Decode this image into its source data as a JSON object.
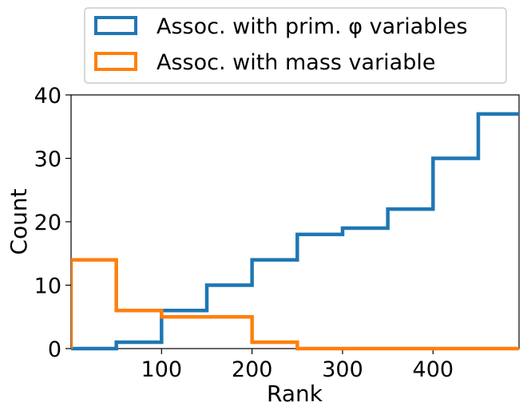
{
  "chart_data": {
    "type": "step-histogram",
    "xlabel": "Rank",
    "ylabel": "Count",
    "xlim": [
      0,
      495
    ],
    "ylim": [
      0,
      40
    ],
    "xticks": [
      100,
      200,
      300,
      400
    ],
    "yticks": [
      0,
      10,
      20,
      30,
      40
    ],
    "bin_edges": [
      0,
      50,
      100,
      150,
      200,
      250,
      300,
      350,
      400,
      450,
      500
    ],
    "legend_position": "top, above plot",
    "series": [
      {
        "name": "Assoc. with prim. φ variables",
        "color": "#1f77b4",
        "values": [
          0,
          1,
          6,
          10,
          14,
          18,
          19,
          22,
          30,
          37
        ]
      },
      {
        "name": "Assoc. with mass variable",
        "color": "#ff7f0e",
        "values": [
          14,
          6,
          5,
          5,
          1,
          0,
          0,
          0,
          0,
          0
        ]
      }
    ]
  }
}
